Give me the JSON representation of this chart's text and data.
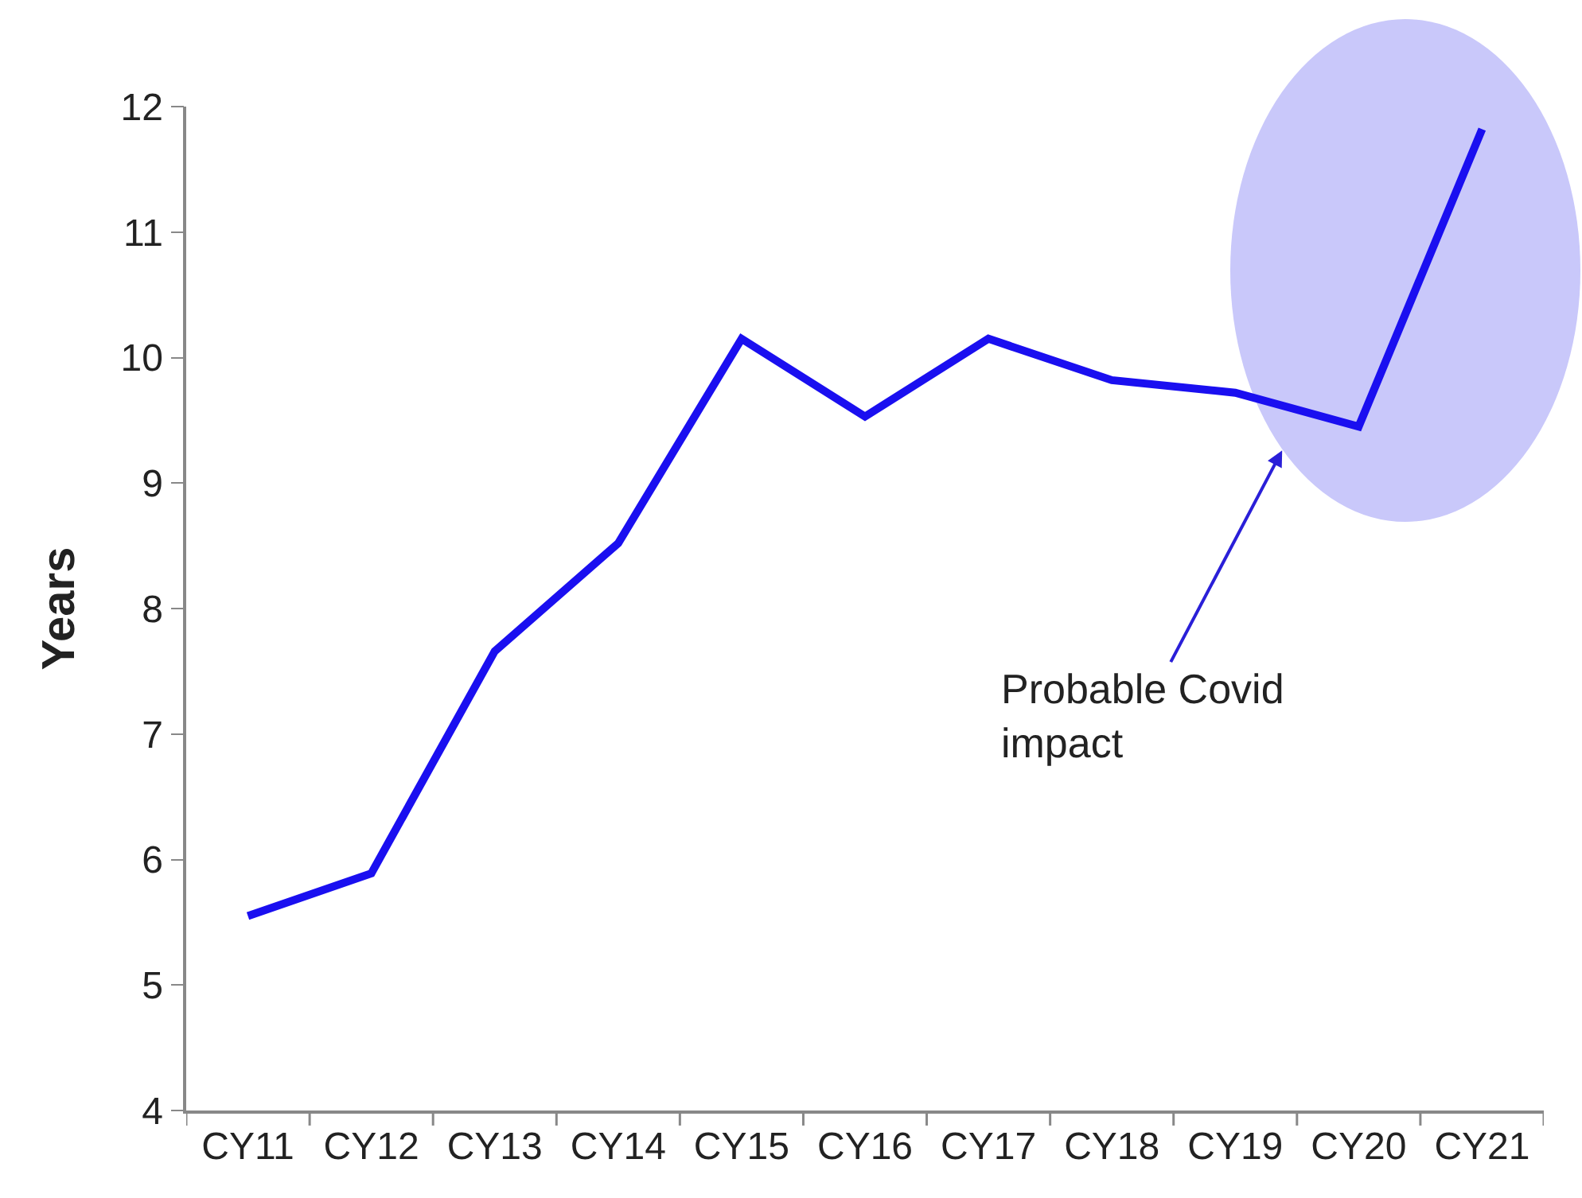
{
  "chart_data": {
    "type": "line",
    "ylabel": "Years",
    "categories": [
      "CY11",
      "CY12",
      "CY13",
      "CY14",
      "CY15",
      "CY16",
      "CY17",
      "CY18",
      "CY19",
      "CY20",
      "CY21"
    ],
    "series": [
      {
        "color": "#1a0ff0",
        "values": [
          5.55,
          5.89,
          7.66,
          8.52,
          10.15,
          9.53,
          10.15,
          9.82,
          9.72,
          9.45,
          11.82
        ]
      }
    ],
    "ylim": [
      4,
      12
    ],
    "yticks": [
      4,
      5,
      6,
      7,
      8,
      9,
      10,
      11,
      12
    ],
    "annotations": [
      "Probable Covid impact"
    ],
    "grid": false,
    "marker": "none",
    "line_style": "solid"
  }
}
